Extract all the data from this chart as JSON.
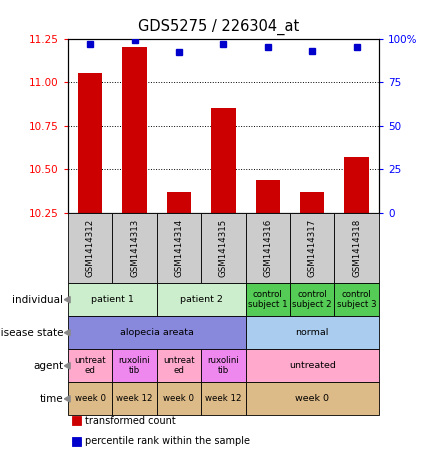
{
  "title": "GDS5275 / 226304_at",
  "samples": [
    "GSM1414312",
    "GSM1414313",
    "GSM1414314",
    "GSM1414315",
    "GSM1414316",
    "GSM1414317",
    "GSM1414318"
  ],
  "transformed_count": [
    11.05,
    11.2,
    10.37,
    10.85,
    10.44,
    10.37,
    10.57
  ],
  "percentile_rank": [
    97,
    99,
    92,
    97,
    95,
    93,
    95
  ],
  "ylim_left": [
    10.25,
    11.25
  ],
  "ylim_right": [
    0,
    100
  ],
  "yticks_left": [
    10.25,
    10.5,
    10.75,
    11.0,
    11.25
  ],
  "yticks_right": [
    0,
    25,
    50,
    75,
    100
  ],
  "bar_color": "#cc0000",
  "dot_color": "#0000cc",
  "label_rows": [
    {
      "label": "individual",
      "cells": [
        {
          "text": "patient 1",
          "span": 2,
          "color": "#cceecc"
        },
        {
          "text": "patient 2",
          "span": 2,
          "color": "#cceecc"
        },
        {
          "text": "control\nsubject 1",
          "span": 1,
          "color": "#55cc55"
        },
        {
          "text": "control\nsubject 2",
          "span": 1,
          "color": "#55cc55"
        },
        {
          "text": "control\nsubject 3",
          "span": 1,
          "color": "#55cc55"
        }
      ]
    },
    {
      "label": "disease state",
      "cells": [
        {
          "text": "alopecia areata",
          "span": 4,
          "color": "#8888dd"
        },
        {
          "text": "normal",
          "span": 3,
          "color": "#aaccee"
        }
      ]
    },
    {
      "label": "agent",
      "cells": [
        {
          "text": "untreat\ned",
          "span": 1,
          "color": "#ffaacc"
        },
        {
          "text": "ruxolini\ntib",
          "span": 1,
          "color": "#ee88ee"
        },
        {
          "text": "untreat\ned",
          "span": 1,
          "color": "#ffaacc"
        },
        {
          "text": "ruxolini\ntib",
          "span": 1,
          "color": "#ee88ee"
        },
        {
          "text": "untreated",
          "span": 3,
          "color": "#ffaacc"
        }
      ]
    },
    {
      "label": "time",
      "cells": [
        {
          "text": "week 0",
          "span": 1,
          "color": "#ddbb88"
        },
        {
          "text": "week 12",
          "span": 1,
          "color": "#ddbb88"
        },
        {
          "text": "week 0",
          "span": 1,
          "color": "#ddbb88"
        },
        {
          "text": "week 12",
          "span": 1,
          "color": "#ddbb88"
        },
        {
          "text": "week 0",
          "span": 3,
          "color": "#ddbb88"
        }
      ]
    }
  ],
  "legend_items": [
    {
      "color": "#cc0000",
      "label": "transformed count"
    },
    {
      "color": "#0000cc",
      "label": "percentile rank within the sample"
    }
  ]
}
